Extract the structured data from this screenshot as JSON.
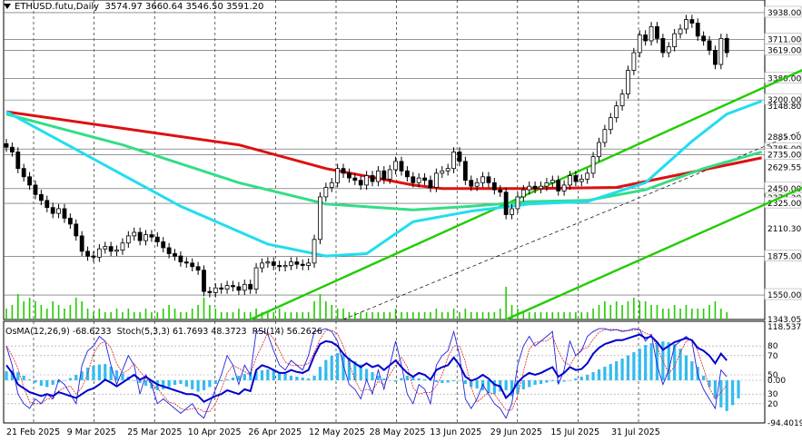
{
  "header": {
    "symbol": "ETHUSD.futu,Daily",
    "ohlc": "3574.97 3660.64 3546.50 3591.20"
  },
  "indicator_header": {
    "osma": "OsMA(12,26,9) -68.6233",
    "stoch": "Stoch(5,3,3) 61.7693 48.3723",
    "rsi": "RSI(14) 56.2626"
  },
  "colors": {
    "ma_red": "#dd1111",
    "ma_green": "#33dd88",
    "ma_cyan": "#22ddee",
    "channel": "#22cc00",
    "histogram": "#33bbee",
    "volume": "#22cc00",
    "rsi_line": "#0000cc",
    "stoch_main": "#2222dd",
    "stoch_signal": "#dd2222",
    "candles": "#000000"
  },
  "chart_data": [
    {
      "type": "candlestick",
      "title": "ETHUSD.futu,Daily",
      "x_tick_labels": [
        "21 Feb 2025",
        "9 Mar 2025",
        "25 Mar 2025",
        "10 Apr 2025",
        "26 Apr 2025",
        "12 May 2025",
        "28 May 2025",
        "13 Jun 2025",
        "29 Jun 2025",
        "15 Jul 2025",
        "31 Jul 2025"
      ],
      "y_tick_labels": [
        "3938.00",
        "3711.00",
        "3619.00",
        "3380.00",
        "3200.00",
        "3148.80",
        "2885.00",
        "2785.00",
        "2735.00",
        "2629.55",
        "2450.00",
        "2373.30",
        "2325.00",
        "2110.30",
        "1875.00",
        "1550.00",
        "1343.05"
      ],
      "ylim": [
        1343.05,
        4030
      ],
      "horizontal_levels": [
        3938,
        3711,
        3619,
        3380,
        3200,
        2785,
        2735,
        2450,
        2325,
        1875,
        1550
      ],
      "closes": [
        2800,
        2760,
        2620,
        2550,
        2480,
        2400,
        2350,
        2290,
        2240,
        2280,
        2200,
        2150,
        2050,
        1920,
        1880,
        1870,
        1940,
        1960,
        1920,
        1930,
        1990,
        2050,
        2080,
        2010,
        2060,
        2040,
        2000,
        1950,
        1900,
        1880,
        1830,
        1820,
        1790,
        1760,
        1580,
        1570,
        1610,
        1600,
        1630,
        1620,
        1590,
        1640,
        1600,
        1780,
        1820,
        1830,
        1800,
        1790,
        1800,
        1830,
        1810,
        1800,
        1820,
        2020,
        2380,
        2460,
        2500,
        2620,
        2580,
        2540,
        2520,
        2480,
        2560,
        2510,
        2600,
        2530,
        2610,
        2680,
        2600,
        2550,
        2500,
        2540,
        2520,
        2460,
        2580,
        2600,
        2620,
        2760,
        2680,
        2520,
        2470,
        2500,
        2550,
        2500,
        2440,
        2420,
        2230,
        2280,
        2380,
        2440,
        2470,
        2450,
        2470,
        2500,
        2520,
        2430,
        2480,
        2560,
        2510,
        2530,
        2580,
        2720,
        2840,
        2950,
        3050,
        3150,
        3250,
        3450,
        3600,
        3750,
        3700,
        3820,
        3720,
        3600,
        3650,
        3760,
        3800,
        3880,
        3850,
        3740,
        3700,
        3620,
        3500,
        3720,
        3600
      ],
      "volume_levels": [
        0.3,
        0.4,
        0.7,
        0.5,
        0.6,
        0.5,
        0.4,
        0.3,
        0.5,
        0.4,
        0.3,
        0.4,
        0.6,
        0.5,
        0.3,
        0.2,
        0.3,
        0.2,
        0.2,
        0.3,
        0.2,
        0.3,
        0.2,
        0.2,
        0.3,
        0.2,
        0.2,
        0.3,
        0.4,
        0.3,
        0.2,
        0.2,
        0.3,
        0.4,
        0.6,
        0.4,
        0.3,
        0.2,
        0.2,
        0.2,
        0.3,
        0.2,
        0.2,
        0.3,
        0.2,
        0.2,
        0.2,
        0.3,
        0.2,
        0.2,
        0.2,
        0.2,
        0.2,
        0.5,
        0.7,
        0.5,
        0.4,
        0.3,
        0.3,
        0.2,
        0.2,
        0.2,
        0.2,
        0.2,
        0.2,
        0.2,
        0.2,
        0.3,
        0.2,
        0.2,
        0.2,
        0.2,
        0.2,
        0.2,
        0.3,
        0.2,
        0.2,
        0.3,
        0.2,
        0.3,
        0.2,
        0.2,
        0.2,
        0.2,
        0.2,
        0.3,
        0.9,
        0.4,
        0.3,
        0.2,
        0.2,
        0.2,
        0.2,
        0.2,
        0.2,
        0.2,
        0.2,
        0.2,
        0.2,
        0.2,
        0.2,
        0.3,
        0.4,
        0.5,
        0.4,
        0.5,
        0.4,
        0.5,
        0.6,
        0.5,
        0.5,
        0.4,
        0.4,
        0.3,
        0.3,
        0.4,
        0.3,
        0.4,
        0.3,
        0.3,
        0.3,
        0.4,
        0.5,
        0.3,
        0.2
      ],
      "moving_averages": [
        {
          "color_key": "ma_red",
          "points": [
            [
              0,
              3100
            ],
            [
              20,
              2960
            ],
            [
              40,
              2820
            ],
            [
              55,
              2620
            ],
            [
              70,
              2480
            ],
            [
              75,
              2450
            ],
            [
              90,
              2450
            ],
            [
              105,
              2460
            ],
            [
              115,
              2560
            ],
            [
              125,
              2660
            ],
            [
              130,
              2710
            ]
          ]
        },
        {
          "color_key": "ma_green",
          "points": [
            [
              0,
              3080
            ],
            [
              20,
              2820
            ],
            [
              40,
              2500
            ],
            [
              55,
              2320
            ],
            [
              70,
              2270
            ],
            [
              80,
              2300
            ],
            [
              90,
              2340
            ],
            [
              100,
              2350
            ],
            [
              110,
              2440
            ],
            [
              120,
              2620
            ],
            [
              130,
              2760
            ]
          ]
        },
        {
          "color_key": "ma_cyan",
          "points": [
            [
              0,
              3100
            ],
            [
              15,
              2700
            ],
            [
              30,
              2300
            ],
            [
              45,
              1980
            ],
            [
              55,
              1880
            ],
            [
              62,
              1900
            ],
            [
              70,
              2170
            ],
            [
              80,
              2260
            ],
            [
              90,
              2320
            ],
            [
              100,
              2340
            ],
            [
              110,
              2500
            ],
            [
              118,
              2850
            ],
            [
              124,
              3080
            ],
            [
              130,
              3190
            ]
          ]
        }
      ],
      "channel_lines": [
        {
          "style": "solid",
          "points": [
            [
              42,
              1343.05
            ],
            [
              163,
              4030
            ]
          ]
        },
        {
          "style": "solid",
          "points": [
            [
              86,
              1343.05
            ],
            [
              209,
              4030
            ]
          ]
        },
        {
          "style": "dashed",
          "points": [
            [
              58,
              1343.05
            ],
            [
              191,
              4030
            ]
          ]
        }
      ]
    },
    {
      "type": "bar",
      "title": "OsMA(12,26,9) -68.6233",
      "y_tick_labels": [
        "118.5373",
        "80",
        "70",
        "50",
        "30",
        "20",
        "0.00",
        "-94.4019"
      ],
      "ylim": [
        -94.4019,
        118.5373
      ],
      "reference_lines": [
        80,
        70,
        50,
        30,
        20,
        0
      ],
      "osma": [
        20,
        22,
        18,
        10,
        2,
        -5,
        -12,
        -15,
        -10,
        -5,
        0,
        5,
        12,
        20,
        28,
        32,
        35,
        36,
        30,
        22,
        15,
        8,
        0,
        -6,
        -12,
        -18,
        -22,
        -20,
        -15,
        -10,
        -8,
        -14,
        -20,
        -25,
        -22,
        -15,
        -8,
        -2,
        2,
        6,
        10,
        14,
        18,
        20,
        22,
        24,
        22,
        18,
        14,
        10,
        8,
        6,
        4,
        10,
        30,
        45,
        55,
        60,
        58,
        50,
        42,
        35,
        25,
        18,
        10,
        4,
        0,
        -3,
        5,
        10,
        8,
        4,
        2,
        0,
        -4,
        -6,
        -5,
        -2,
        0,
        -8,
        -15,
        -18,
        -22,
        -28,
        -30,
        -25,
        -22,
        -35,
        -30,
        -20,
        -15,
        -10,
        -8,
        -5,
        -2,
        -6,
        -3,
        0,
        4,
        8,
        12,
        18,
        24,
        30,
        36,
        42,
        48,
        55,
        62,
        70,
        78,
        82,
        84,
        86,
        84,
        80,
        70,
        55,
        42,
        30,
        10,
        -15,
        -40,
        -60,
        -68,
        -55,
        -40
      ],
      "rsi": [
        60,
        52,
        40,
        36,
        32,
        30,
        28,
        30,
        28,
        32,
        30,
        28,
        26,
        30,
        34,
        36,
        40,
        45,
        42,
        38,
        42,
        46,
        50,
        45,
        48,
        44,
        40,
        38,
        36,
        34,
        32,
        30,
        30,
        28,
        22,
        25,
        28,
        30,
        34,
        32,
        30,
        35,
        33,
        55,
        60,
        58,
        55,
        52,
        52,
        55,
        53,
        52,
        55,
        70,
        82,
        85,
        84,
        80,
        72,
        66,
        62,
        58,
        62,
        58,
        60,
        55,
        60,
        65,
        58,
        52,
        48,
        52,
        50,
        45,
        55,
        58,
        60,
        68,
        60,
        48,
        44,
        46,
        50,
        46,
        40,
        38,
        26,
        32,
        42,
        48,
        52,
        50,
        52,
        55,
        58,
        48,
        52,
        58,
        55,
        56,
        62,
        72,
        78,
        82,
        84,
        86,
        86,
        88,
        90,
        92,
        88,
        90,
        84,
        76,
        80,
        84,
        86,
        88,
        86,
        78,
        75,
        70,
        62,
        72,
        65
      ],
      "stoch": [
        80,
        60,
        30,
        20,
        15,
        25,
        20,
        30,
        25,
        45,
        40,
        30,
        20,
        60,
        75,
        80,
        90,
        85,
        60,
        40,
        55,
        70,
        60,
        30,
        50,
        40,
        20,
        25,
        20,
        15,
        10,
        15,
        20,
        10,
        5,
        20,
        35,
        50,
        70,
        60,
        40,
        60,
        50,
        95,
        96,
        92,
        75,
        60,
        55,
        65,
        60,
        55,
        70,
        95,
        96,
        98,
        95,
        85,
        60,
        40,
        35,
        25,
        45,
        30,
        55,
        35,
        60,
        85,
        60,
        30,
        20,
        40,
        35,
        20,
        60,
        70,
        75,
        95,
        70,
        25,
        15,
        25,
        40,
        30,
        20,
        15,
        5,
        20,
        60,
        80,
        90,
        80,
        85,
        90,
        95,
        40,
        55,
        85,
        70,
        75,
        90,
        95,
        98,
        98,
        96,
        97,
        95,
        96,
        98,
        97,
        85,
        92,
        60,
        40,
        55,
        80,
        85,
        90,
        85,
        50,
        35,
        25,
        15,
        55,
        48
      ]
    }
  ]
}
